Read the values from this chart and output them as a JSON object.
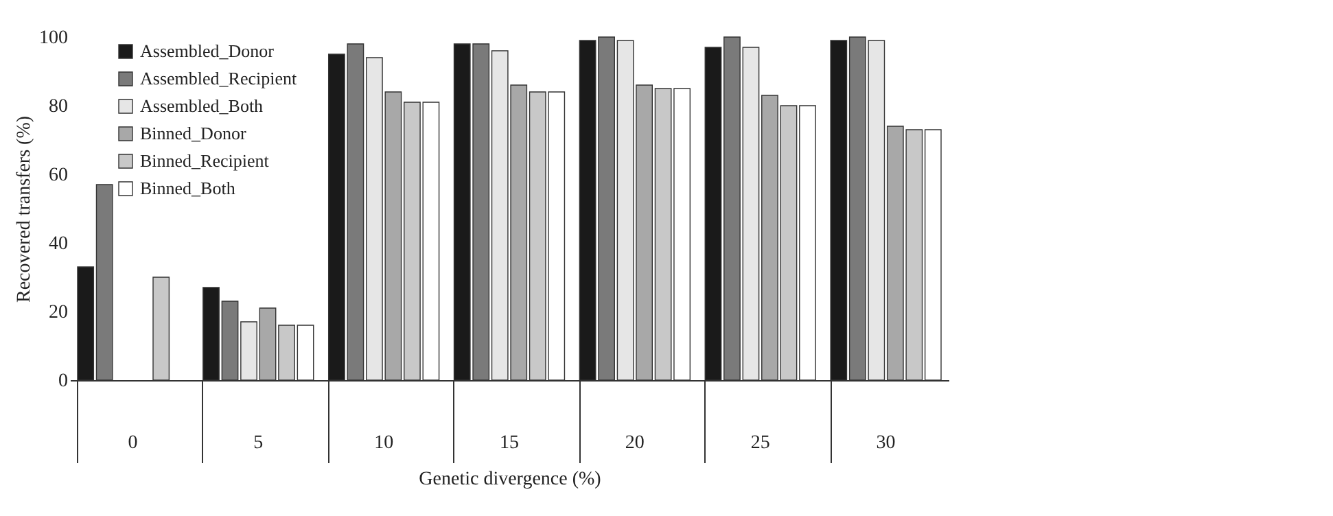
{
  "chart_data": {
    "type": "bar",
    "xlabel": "Genetic divergence (%)",
    "ylabel": "Recovered transfers (%)",
    "categories": [
      "0",
      "5",
      "10",
      "15",
      "20",
      "25",
      "30"
    ],
    "ylim": [
      0,
      100
    ],
    "yticks": [
      0,
      20,
      40,
      60,
      80,
      100
    ],
    "grid": false,
    "legend": "top left",
    "series": [
      {
        "name": "Assembled_Donor",
        "color": "#1a1a1a",
        "values": [
          33,
          27,
          95,
          98,
          99,
          97,
          99
        ]
      },
      {
        "name": "Assembled_Recipient",
        "color": "#7a7a7a",
        "values": [
          57,
          23,
          98,
          98,
          100,
          100,
          100
        ]
      },
      {
        "name": "Assembled_Both",
        "color": "#e6e6e6",
        "values": [
          null,
          17,
          94,
          96,
          99,
          97,
          99
        ]
      },
      {
        "name": "Binned_Donor",
        "color": "#a8a8a8",
        "values": [
          null,
          21,
          84,
          86,
          86,
          83,
          74
        ]
      },
      {
        "name": "Binned_Recipient",
        "color": "#c8c8c8",
        "values": [
          30,
          16,
          81,
          84,
          85,
          80,
          73
        ]
      },
      {
        "name": "Binned_Both",
        "color": "#ffffff",
        "values": [
          null,
          16,
          81,
          84,
          85,
          80,
          73
        ]
      }
    ]
  }
}
